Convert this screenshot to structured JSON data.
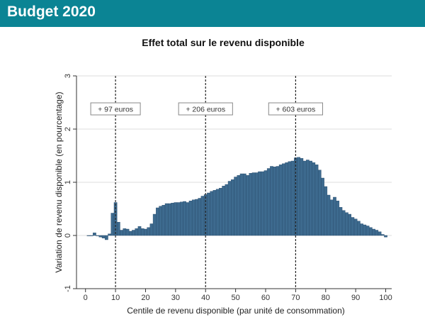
{
  "header": {
    "title": "Budget 2020"
  },
  "colors": {
    "header_bg": "#0b8494",
    "bar_fill": "#3d6a8e",
    "bar_stroke": "#26496a",
    "grid": "#dcdcdc"
  },
  "chart_data": {
    "type": "bar",
    "title": "Effet total sur le revenu disponible",
    "xlabel": "Centile de revenu disponible (par unité de consommation)",
    "ylabel": "Variation de revenu disponible (en pourcentage)",
    "xlim": [
      -3,
      102
    ],
    "ylim": [
      -1,
      3
    ],
    "xticks": [
      0,
      10,
      20,
      30,
      40,
      50,
      60,
      70,
      80,
      90,
      100
    ],
    "yticks": [
      -1,
      0,
      1,
      2,
      3
    ],
    "grid": true,
    "x": [
      1,
      2,
      3,
      4,
      5,
      6,
      7,
      8,
      9,
      10,
      11,
      12,
      13,
      14,
      15,
      16,
      17,
      18,
      19,
      20,
      21,
      22,
      23,
      24,
      25,
      26,
      27,
      28,
      29,
      30,
      31,
      32,
      33,
      34,
      35,
      36,
      37,
      38,
      39,
      40,
      41,
      42,
      43,
      44,
      45,
      46,
      47,
      48,
      49,
      50,
      51,
      52,
      53,
      54,
      55,
      56,
      57,
      58,
      59,
      60,
      61,
      62,
      63,
      64,
      65,
      66,
      67,
      68,
      69,
      70,
      71,
      72,
      73,
      74,
      75,
      76,
      77,
      78,
      79,
      80,
      81,
      82,
      83,
      84,
      85,
      86,
      87,
      88,
      89,
      90,
      91,
      92,
      93,
      94,
      95,
      96,
      97,
      98,
      99,
      100
    ],
    "values": [
      0.0,
      0.0,
      0.05,
      0.0,
      -0.03,
      -0.05,
      -0.08,
      0.03,
      0.42,
      0.62,
      0.25,
      0.1,
      0.13,
      0.12,
      0.08,
      0.1,
      0.13,
      0.17,
      0.13,
      0.12,
      0.15,
      0.22,
      0.4,
      0.52,
      0.55,
      0.57,
      0.6,
      0.6,
      0.61,
      0.62,
      0.62,
      0.63,
      0.64,
      0.62,
      0.65,
      0.67,
      0.68,
      0.7,
      0.74,
      0.77,
      0.8,
      0.83,
      0.85,
      0.87,
      0.89,
      0.93,
      0.96,
      1.02,
      1.05,
      1.1,
      1.13,
      1.16,
      1.16,
      1.13,
      1.17,
      1.18,
      1.18,
      1.2,
      1.2,
      1.22,
      1.26,
      1.3,
      1.29,
      1.3,
      1.33,
      1.35,
      1.37,
      1.39,
      1.4,
      1.46,
      1.47,
      1.45,
      1.4,
      1.42,
      1.4,
      1.37,
      1.33,
      1.23,
      1.08,
      0.92,
      0.76,
      0.67,
      0.72,
      0.65,
      0.53,
      0.47,
      0.43,
      0.4,
      0.34,
      0.31,
      0.27,
      0.22,
      0.2,
      0.18,
      0.15,
      0.12,
      0.1,
      0.07,
      0.02,
      -0.03
    ],
    "vlines": [
      {
        "x": 10,
        "label": "+ 97 euros"
      },
      {
        "x": 40,
        "label": "+ 206 euros"
      },
      {
        "x": 70,
        "label": "+ 603 euros"
      }
    ]
  }
}
